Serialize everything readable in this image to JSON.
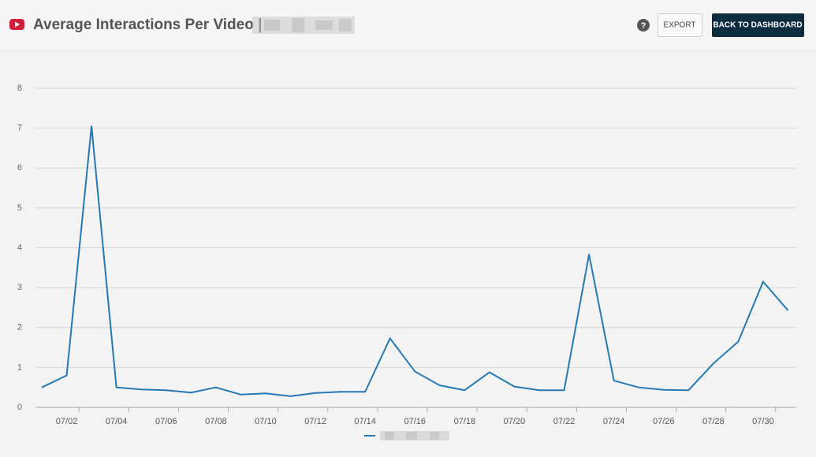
{
  "header": {
    "title": "Average Interactions Per Video |",
    "help": "?",
    "export": "EXPORT",
    "back": "BACK TO DASHBOARD"
  },
  "chart_data": {
    "type": "line",
    "categories": [
      null,
      "07/02",
      null,
      "07/04",
      null,
      "07/06",
      null,
      "07/08",
      null,
      "07/10",
      null,
      "07/12",
      null,
      "07/14",
      null,
      "07/16",
      null,
      "07/18",
      null,
      "07/20",
      null,
      "07/22",
      null,
      "07/24",
      null,
      "07/26",
      null,
      "07/28",
      null,
      "07/30",
      null
    ],
    "series": [
      {
        "color": "#2479b5",
        "values": [
          0.5,
          0.8,
          7.05,
          0.5,
          0.45,
          0.43,
          0.37,
          0.5,
          0.32,
          0.35,
          0.28,
          0.36,
          0.39,
          0.39,
          1.73,
          0.9,
          0.55,
          0.43,
          0.88,
          0.52,
          0.43,
          0.43,
          3.83,
          0.67,
          0.5,
          0.44,
          0.43,
          1.1,
          1.65,
          3.15,
          2.43
        ]
      }
    ],
    "ylim": [
      0,
      8
    ],
    "yticks": [
      0,
      1,
      2,
      3,
      4,
      5,
      6,
      7,
      8
    ],
    "grid": true
  }
}
